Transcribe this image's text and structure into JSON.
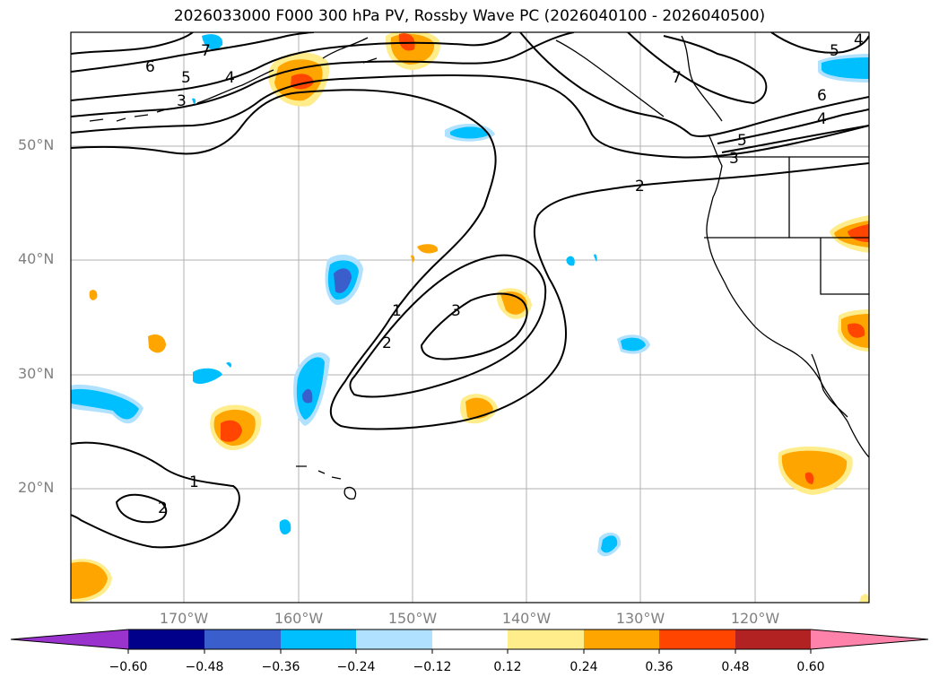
{
  "title": "2026033000 F000 300 hPa PV, Rossby Wave PC (2026040100 - 2026040500)",
  "map": {
    "projection": "lat-lon",
    "lat_labels": [
      {
        "text": "50°N",
        "lat": 50
      },
      {
        "text": "40°N",
        "lat": 40
      },
      {
        "text": "30°N",
        "lat": 30
      },
      {
        "text": "20°N",
        "lat": 20
      }
    ],
    "lon_labels": [
      {
        "text": "170°W",
        "lon": -170
      },
      {
        "text": "160°W",
        "lon": -160
      },
      {
        "text": "150°W",
        "lon": -150
      },
      {
        "text": "140°W",
        "lon": -140
      },
      {
        "text": "130°W",
        "lon": -130
      },
      {
        "text": "120°W",
        "lon": -120
      }
    ],
    "pv_contour_labels": [
      "1",
      "2",
      "3",
      "1",
      "2",
      "2",
      "3",
      "4",
      "5",
      "6",
      "7",
      "3",
      "4",
      "5",
      "6",
      "7",
      "5",
      "4"
    ]
  },
  "colorbar": {
    "ticks": [
      "−0.60",
      "−0.48",
      "−0.36",
      "−0.24",
      "−0.12",
      "0.12",
      "0.24",
      "0.36",
      "0.48",
      "0.60"
    ],
    "colors": [
      "#9a32cd",
      "#00008b",
      "#3a5fcd",
      "#00bfff",
      "#b0e2ff",
      "#ffffff",
      "#ffec8b",
      "#ffa500",
      "#ff4500",
      "#b22222",
      "#ff82ab"
    ]
  }
}
